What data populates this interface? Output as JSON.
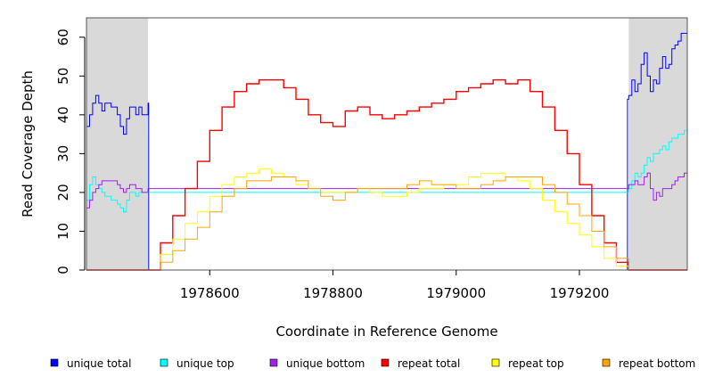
{
  "chart_data": {
    "type": "line",
    "xlabel": "Coordinate in Reference Genome",
    "ylabel": "Read Coverage Depth",
    "xlim": [
      1978400,
      1979375
    ],
    "ylim": [
      0,
      65
    ],
    "x_ticks": [
      1978600,
      1978800,
      1979000,
      1979200
    ],
    "y_ticks": [
      0,
      10,
      20,
      30,
      40,
      50,
      60
    ],
    "shaded_regions": [
      [
        1978400,
        1978500
      ],
      [
        1979280,
        1979375
      ]
    ],
    "legend_position": "bottom",
    "series": [
      {
        "name": "unique total",
        "color": "#0000ff",
        "x": [
          1978400,
          1978405,
          1978410,
          1978415,
          1978420,
          1978425,
          1978430,
          1978435,
          1978440,
          1978445,
          1978450,
          1978455,
          1978460,
          1978465,
          1978470,
          1978475,
          1978480,
          1978485,
          1978490,
          1978495,
          1978500,
          1978501,
          1978502,
          1979276,
          1979278,
          1979280,
          1979285,
          1979290,
          1979295,
          1979300,
          1979305,
          1979310,
          1979315,
          1979320,
          1979325,
          1979330,
          1979335,
          1979340,
          1979345,
          1979350,
          1979355,
          1979360,
          1979365,
          1979370,
          1979375
        ],
        "y": [
          37,
          40,
          43,
          45,
          43,
          41,
          43,
          43,
          42,
          42,
          40,
          37,
          35,
          39,
          42,
          42,
          40,
          42,
          40,
          40,
          43,
          0,
          0,
          0,
          44,
          45,
          49,
          46,
          48,
          53,
          56,
          50,
          46,
          49,
          48,
          52,
          55,
          52,
          53,
          57,
          58,
          59,
          61,
          61,
          61
        ]
      },
      {
        "name": "unique top",
        "color": "#00ffff",
        "x": [
          1978400,
          1978405,
          1978410,
          1978415,
          1978420,
          1978425,
          1978430,
          1978435,
          1978440,
          1978445,
          1978450,
          1978455,
          1978460,
          1978465,
          1978470,
          1978475,
          1978480,
          1978485,
          1978490,
          1978495,
          1978500,
          1979280,
          1979285,
          1979290,
          1979295,
          1979300,
          1979305,
          1979310,
          1979315,
          1979320,
          1979325,
          1979330,
          1979335,
          1979340,
          1979345,
          1979350,
          1979355,
          1979360,
          1979365,
          1979370,
          1979375
        ],
        "y": [
          18,
          22,
          24,
          22,
          21,
          20,
          19,
          19,
          18,
          18,
          17,
          16,
          15,
          18,
          20,
          20,
          19,
          20,
          20,
          20,
          20,
          21,
          23,
          25,
          24,
          25,
          27,
          29,
          28,
          30,
          30,
          31,
          32,
          31,
          33,
          34,
          34,
          35,
          35,
          36,
          36
        ]
      },
      {
        "name": "unique bottom",
        "color": "#a020f0",
        "x": [
          1978400,
          1978405,
          1978410,
          1978415,
          1978420,
          1978425,
          1978430,
          1978435,
          1978440,
          1978445,
          1978450,
          1978455,
          1978460,
          1978465,
          1978470,
          1978475,
          1978480,
          1978485,
          1978490,
          1978495,
          1978500,
          1979280,
          1979285,
          1979290,
          1979295,
          1979300,
          1979305,
          1979310,
          1979315,
          1979320,
          1979325,
          1979330,
          1979335,
          1979340,
          1979345,
          1979350,
          1979355,
          1979360,
          1979365,
          1979370,
          1979375
        ],
        "y": [
          16,
          18,
          20,
          21,
          22,
          23,
          23,
          23,
          23,
          23,
          22,
          21,
          20,
          21,
          22,
          22,
          21,
          21,
          20,
          20,
          21,
          22,
          22,
          23,
          22,
          22,
          24,
          25,
          21,
          18,
          20,
          19,
          21,
          21,
          21,
          22,
          23,
          24,
          24,
          25,
          25
        ]
      },
      {
        "name": "repeat total",
        "color": "#ff0000",
        "x": [
          1978400,
          1978500,
          1978520,
          1978540,
          1978560,
          1978580,
          1978600,
          1978620,
          1978640,
          1978660,
          1978680,
          1978700,
          1978720,
          1978740,
          1978760,
          1978780,
          1978800,
          1978820,
          1978840,
          1978860,
          1978880,
          1978900,
          1978920,
          1978940,
          1978960,
          1978980,
          1979000,
          1979020,
          1979040,
          1979060,
          1979080,
          1979100,
          1979120,
          1979140,
          1979160,
          1979180,
          1979200,
          1979220,
          1979240,
          1979260,
          1979280,
          1979375
        ],
        "y": [
          0,
          0,
          7,
          14,
          21,
          28,
          36,
          42,
          46,
          48,
          49,
          49,
          47,
          44,
          40,
          38,
          37,
          41,
          42,
          40,
          39,
          40,
          41,
          42,
          43,
          44,
          46,
          47,
          48,
          49,
          48,
          49,
          46,
          42,
          36,
          30,
          22,
          14,
          7,
          2,
          0,
          0
        ]
      },
      {
        "name": "repeat top",
        "color": "#ffff00",
        "x": [
          1978400,
          1978500,
          1978520,
          1978540,
          1978560,
          1978580,
          1978600,
          1978620,
          1978640,
          1978660,
          1978680,
          1978700,
          1978720,
          1978740,
          1978760,
          1978780,
          1978800,
          1978820,
          1978840,
          1978860,
          1978880,
          1978900,
          1978920,
          1978940,
          1978960,
          1978980,
          1979000,
          1979020,
          1979040,
          1979060,
          1979080,
          1979100,
          1979120,
          1979140,
          1979160,
          1979180,
          1979200,
          1979220,
          1979240,
          1979260,
          1979280,
          1979375
        ],
        "y": [
          0,
          0,
          4,
          8,
          12,
          15,
          19,
          22,
          24,
          25,
          26,
          25,
          24,
          22,
          21,
          20,
          20,
          20,
          21,
          20,
          19,
          19,
          20,
          21,
          21,
          22,
          22,
          24,
          25,
          25,
          24,
          23,
          21,
          18,
          15,
          12,
          9,
          6,
          3,
          1,
          0,
          0
        ]
      },
      {
        "name": "repeat bottom",
        "color": "#ffa500",
        "x": [
          1978400,
          1978500,
          1978520,
          1978540,
          1978560,
          1978580,
          1978600,
          1978620,
          1978640,
          1978660,
          1978680,
          1978700,
          1978720,
          1978740,
          1978760,
          1978780,
          1978800,
          1978820,
          1978840,
          1978860,
          1978880,
          1978900,
          1978920,
          1978940,
          1978960,
          1978980,
          1979000,
          1979020,
          1979040,
          1979060,
          1979080,
          1979100,
          1979120,
          1979140,
          1979160,
          1979180,
          1979200,
          1979220,
          1979240,
          1979260,
          1979280,
          1979375
        ],
        "y": [
          0,
          0,
          2,
          5,
          8,
          11,
          15,
          19,
          21,
          23,
          23,
          24,
          24,
          23,
          21,
          19,
          18,
          20,
          21,
          21,
          21,
          21,
          22,
          23,
          22,
          22,
          21,
          21,
          22,
          23,
          24,
          24,
          24,
          22,
          20,
          17,
          14,
          10,
          6,
          3,
          0,
          0
        ]
      }
    ]
  }
}
